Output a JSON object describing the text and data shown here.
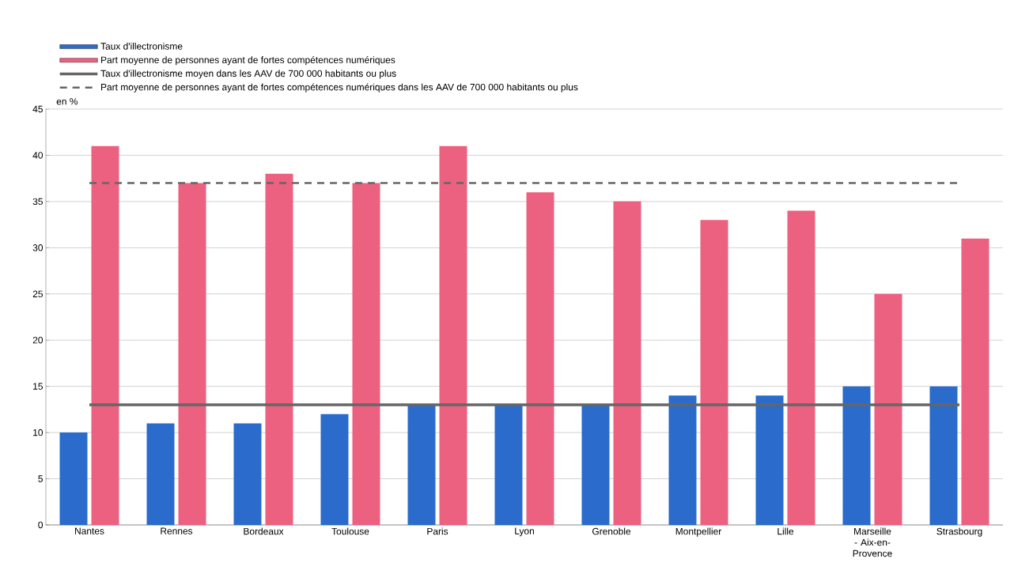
{
  "chart_data": {
    "type": "bar",
    "ylabel": "en %",
    "categories": [
      "Nantes",
      "Rennes",
      "Bordeaux",
      "Toulouse",
      "Paris",
      "Lyon",
      "Grenoble",
      "Montpellier",
      "Lille",
      "Marseille - Aix-en-Provence",
      "Strasbourg"
    ],
    "series": [
      {
        "name": "Taux d'illectronisme",
        "color": "#2a6bcb",
        "values": [
          10,
          11,
          11,
          12,
          13,
          13,
          13,
          14,
          14,
          15,
          15
        ]
      },
      {
        "name": "Part moyenne de personnes ayant de fortes compétences numériques",
        "color": "#ec6080",
        "values": [
          41,
          37,
          38,
          37,
          41,
          36,
          35,
          33,
          34,
          25,
          31
        ]
      }
    ],
    "ref_lines": [
      {
        "axis": "y",
        "value": 13,
        "label": "Taux d'illectronisme moyen dans les AAV de 700 000 habitants ou plus",
        "color": "#666666",
        "line_style": "solid"
      },
      {
        "axis": "y",
        "value": 37,
        "label": "Part moyenne de personnes ayant de fortes compétences numériques dans les AAV de 700 000 habitants ou plus",
        "color": "#666666",
        "line_style": "dashed"
      }
    ],
    "ylim": [
      0,
      45
    ],
    "yticks": [
      0,
      5,
      10,
      15,
      20,
      25,
      30,
      35,
      40,
      45
    ],
    "grid": "y",
    "legend": "top left"
  }
}
